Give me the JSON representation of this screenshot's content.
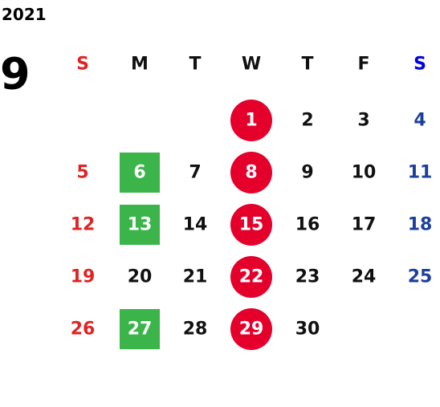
{
  "calendar": {
    "year": "2021",
    "month": "9",
    "weekdays": [
      "S",
      "M",
      "T",
      "W",
      "T",
      "F",
      "S"
    ],
    "weeks": [
      [
        null,
        null,
        null,
        {
          "text": "1",
          "style": "circle"
        },
        "2",
        "3",
        "4"
      ],
      [
        "5",
        {
          "text": "6",
          "style": "box"
        },
        "7",
        {
          "text": "8",
          "style": "circle"
        },
        "9",
        "10",
        "11"
      ],
      [
        "12",
        {
          "text": "13",
          "style": "box"
        },
        "14",
        {
          "text": "15",
          "style": "circle"
        },
        "16",
        "17",
        "18"
      ],
      [
        "19",
        "20",
        "21",
        {
          "text": "22",
          "style": "circle"
        },
        "23",
        "24",
        "25"
      ],
      [
        "26",
        {
          "text": "27",
          "style": "box"
        },
        "28",
        {
          "text": "29",
          "style": "circle"
        },
        "30",
        null,
        null
      ]
    ],
    "sunday_color": "#e02424",
    "saturday_color": "#1c3f9c",
    "saturday_header_color": "#0000e6",
    "circle_color": "#e4002b",
    "box_color": "#3bb54a"
  }
}
